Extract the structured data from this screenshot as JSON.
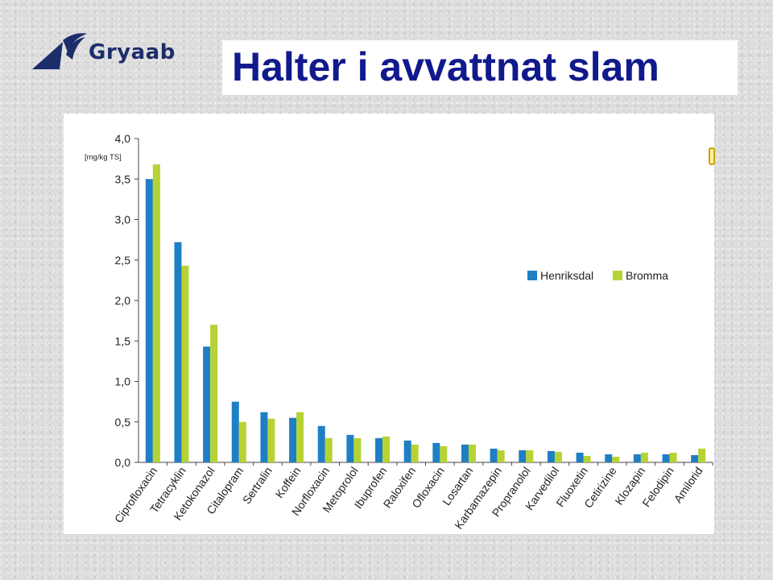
{
  "header": {
    "logo_text": "Gryaab",
    "title": "Halter i avvattnat slam"
  },
  "colors": {
    "henriksdal": "#1f7fc4",
    "bromma": "#b5d334",
    "title": "#111a8c",
    "logo": "#1d2d6b"
  },
  "chart_data": {
    "type": "bar",
    "title": "",
    "xlabel": "",
    "ylabel": "[mg/kg TS]",
    "ylim": [
      0,
      4
    ],
    "yticks": [
      "0,0",
      "0,5",
      "1,0",
      "1,5",
      "2,0",
      "2,5",
      "3,0",
      "3,5",
      "4,0"
    ],
    "legend_position": "right",
    "categories": [
      "Ciprofloxacin",
      "Tetracyklin",
      "Ketokonazol",
      "Citalopram",
      "Sertralin",
      "Koffein",
      "Norfloxacin",
      "Metoprolol",
      "Ibuprofen",
      "Raloxifen",
      "Ofloxacin",
      "Losartan",
      "Karbamazepin",
      "Propranolol",
      "Karvedilol",
      "Fluoxetin",
      "Cetirizine",
      "Klozapin",
      "Felodipin",
      "Amilorid"
    ],
    "series": [
      {
        "name": "Henriksdal",
        "color": "#1f7fc4",
        "values": [
          3.5,
          2.72,
          1.43,
          0.75,
          0.62,
          0.55,
          0.45,
          0.34,
          0.3,
          0.27,
          0.24,
          0.22,
          0.17,
          0.15,
          0.14,
          0.12,
          0.1,
          0.1,
          0.1,
          0.09
        ]
      },
      {
        "name": "Bromma",
        "color": "#b5d334",
        "values": [
          3.68,
          2.43,
          1.7,
          0.5,
          0.54,
          0.62,
          0.3,
          0.3,
          0.32,
          0.22,
          0.2,
          0.22,
          0.15,
          0.15,
          0.13,
          0.08,
          0.07,
          0.12,
          0.12,
          0.17
        ]
      }
    ]
  }
}
